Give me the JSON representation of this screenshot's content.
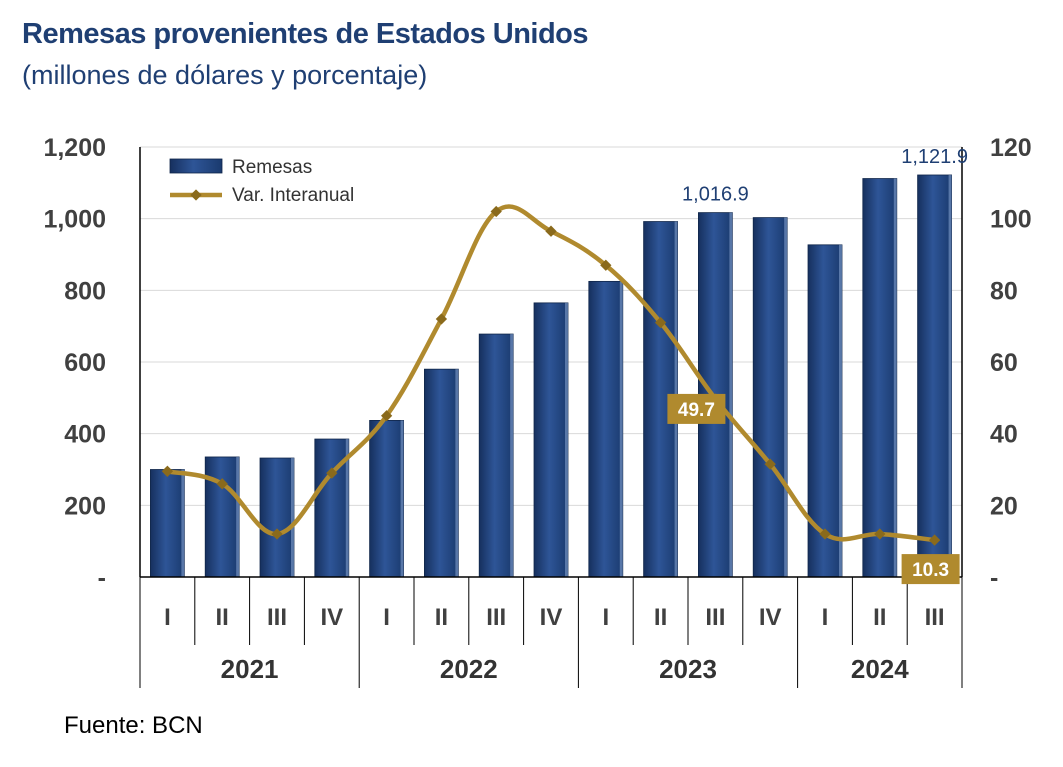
{
  "title": "Remesas provenientes de Estados Unidos",
  "subtitle": "(millones de dólares y porcentaje)",
  "source": "Fuente: BCN",
  "colors": {
    "bar": "#24477f",
    "line": "#b08a2e",
    "text": "#1f3f73"
  },
  "chart_data": {
    "type": "bar+line",
    "categories": [
      "I",
      "II",
      "III",
      "IV",
      "I",
      "II",
      "III",
      "IV",
      "I",
      "II",
      "III",
      "IV",
      "I",
      "II",
      "III"
    ],
    "years": [
      {
        "label": "2021",
        "span": 4
      },
      {
        "label": "2022",
        "span": 4
      },
      {
        "label": "2023",
        "span": 4
      },
      {
        "label": "2024",
        "span": 3
      }
    ],
    "series": [
      {
        "name": "Remesas",
        "kind": "bar",
        "axis": "left",
        "values": [
          300,
          335,
          332,
          385,
          437,
          580,
          678,
          765,
          825,
          992,
          1016.9,
          1003,
          927,
          1112,
          1121.9
        ]
      },
      {
        "name": "Var. Interanual",
        "kind": "line",
        "axis": "right",
        "values": [
          29.5,
          26,
          12,
          29,
          45,
          72,
          102,
          96.5,
          87,
          71,
          49.7,
          31.5,
          12,
          12,
          10.3
        ]
      }
    ],
    "y_left": {
      "min": 0,
      "max": 1200,
      "ticks": [
        "-",
        "200",
        "400",
        "600",
        "800",
        "1,000",
        "1,200"
      ]
    },
    "y_right": {
      "min": 0,
      "max": 120,
      "ticks": [
        "-",
        "20",
        "40",
        "60",
        "80",
        "100",
        "120"
      ]
    },
    "bar_labels": [
      {
        "index": 10,
        "text": "1,016.9"
      },
      {
        "index": 14,
        "text": "1,121.9"
      }
    ],
    "line_callouts": [
      {
        "index": 10,
        "text": "49.7"
      },
      {
        "index": 14,
        "text": "10.3"
      }
    ],
    "gridlines": true,
    "legend": {
      "position": "top-left",
      "items": [
        "Remesas",
        "Var. Interanual"
      ]
    }
  }
}
